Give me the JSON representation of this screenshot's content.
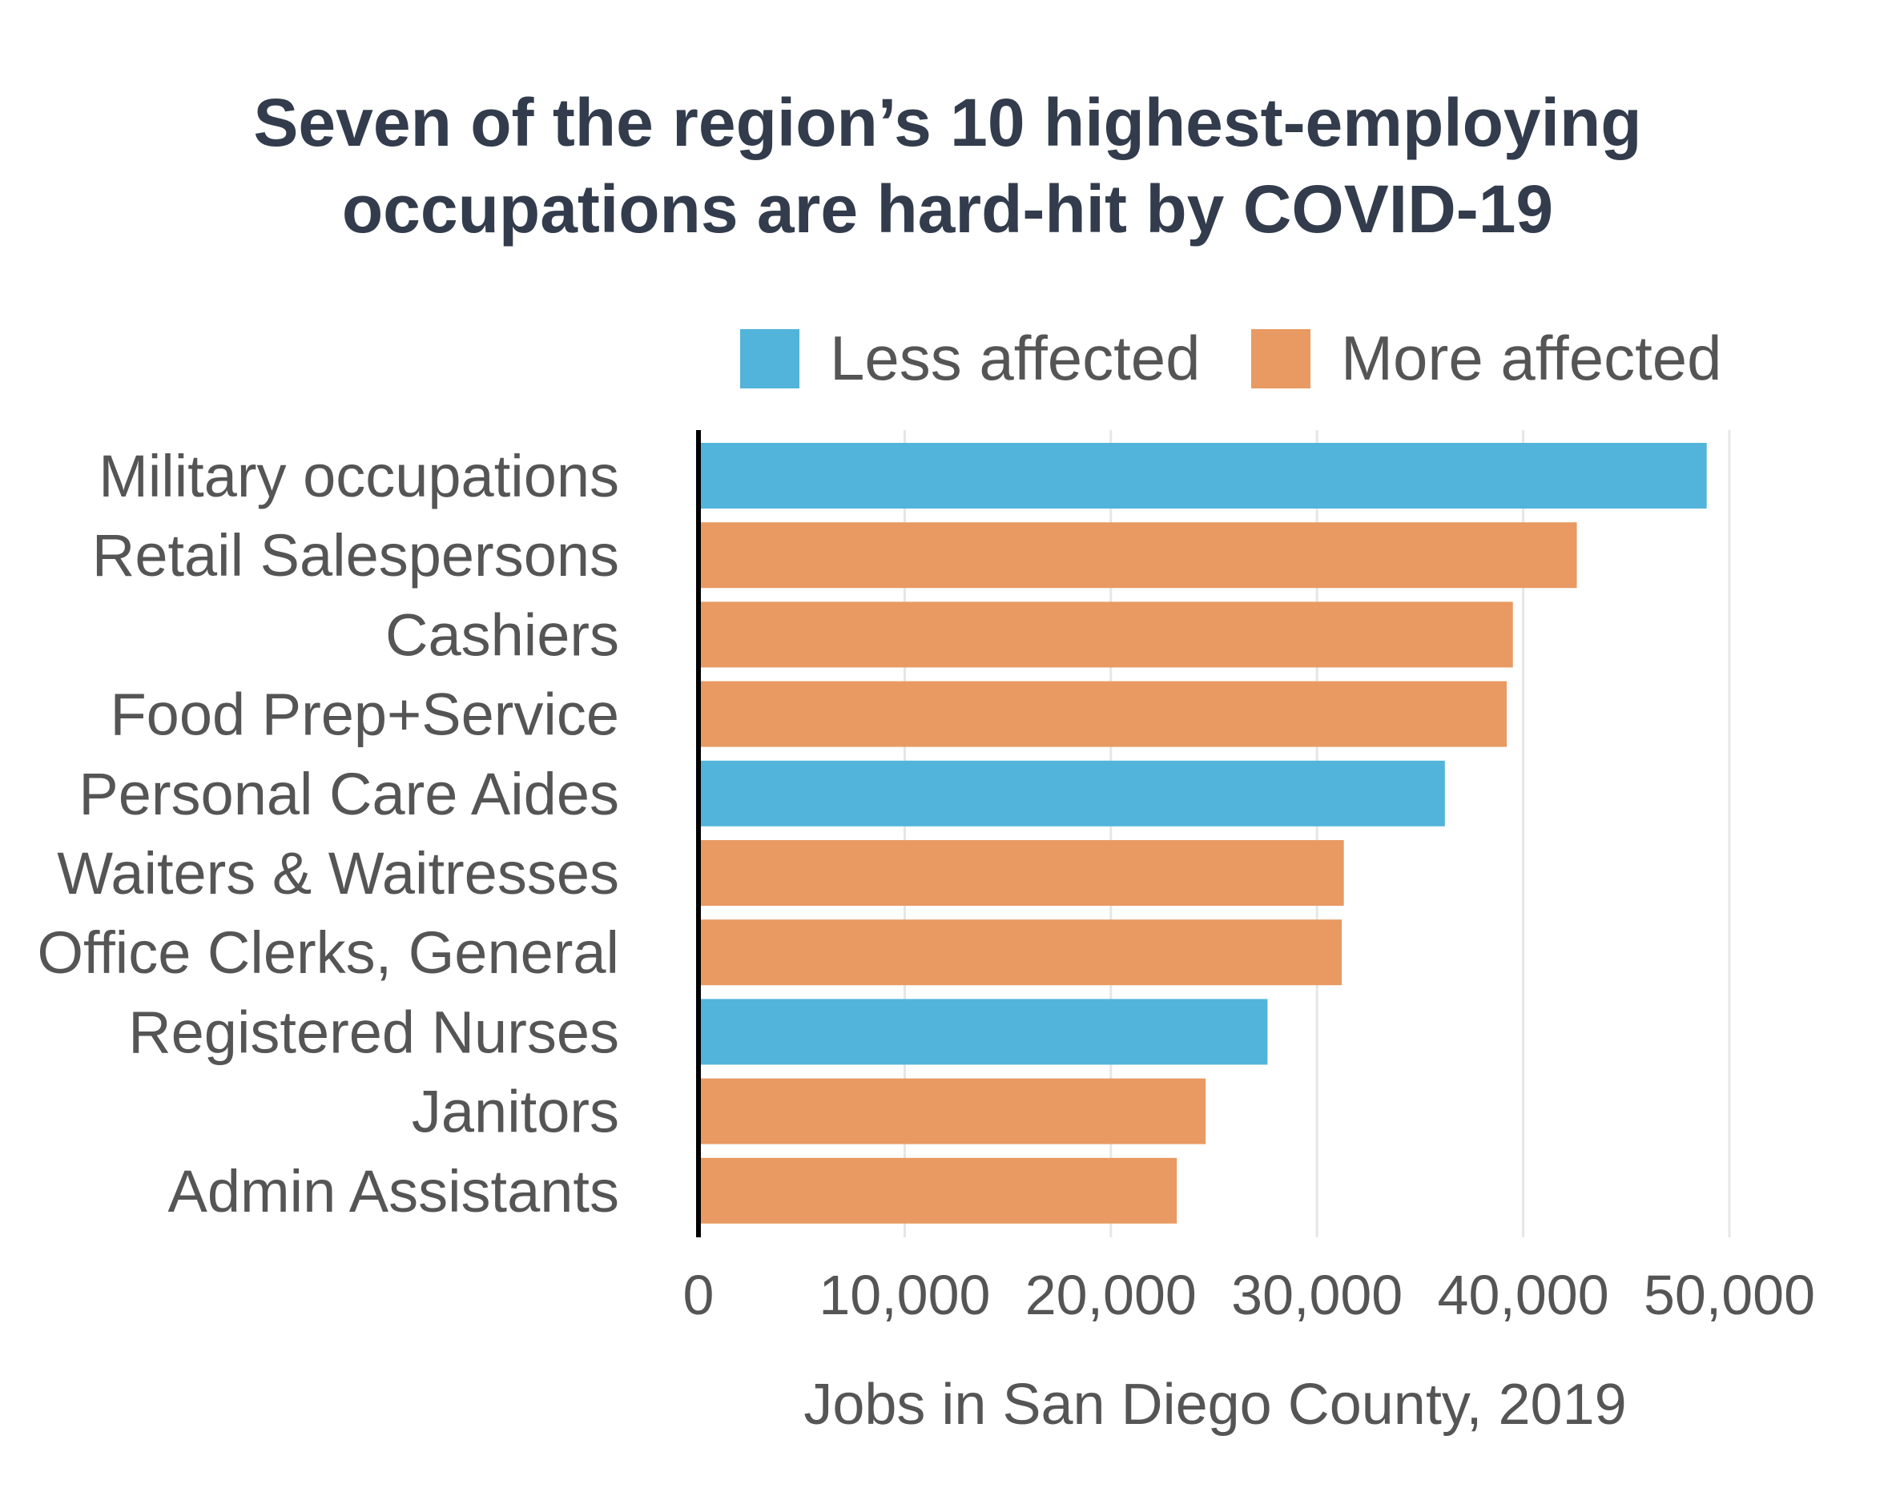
{
  "chart_data": {
    "type": "bar",
    "orientation": "horizontal",
    "title": [
      "Seven of the region’s 10 highest-employing",
      "occupations are hard-hit by COVID-19"
    ],
    "xlabel": "Jobs in San Diego County, 2019",
    "ylabel": "",
    "xlim": [
      0,
      50000
    ],
    "ticks": [
      0,
      10000,
      20000,
      30000,
      40000,
      50000
    ],
    "tick_labels": [
      "0",
      "10,000",
      "20,000",
      "30,000",
      "40,000",
      "50,000"
    ],
    "grid": true,
    "legend_position": "top-right",
    "legend": [
      {
        "key": "less",
        "label": "Less affected",
        "color": "#52b4da"
      },
      {
        "key": "more",
        "label": "More affected",
        "color": "#e89a62"
      }
    ],
    "categories": [
      "Military occupations",
      "Retail Salespersons",
      "Cashiers",
      "Food Prep+Service",
      "Personal Care Aides",
      "Waiters & Waitresses",
      "Office Clerks, General",
      "Registered Nurses",
      "Janitors",
      "Admin Assistants"
    ],
    "values": [
      48900,
      42600,
      39500,
      39200,
      36200,
      31300,
      31200,
      27600,
      24600,
      23200
    ],
    "groups": [
      "less",
      "more",
      "more",
      "more",
      "less",
      "more",
      "more",
      "less",
      "more",
      "more"
    ]
  }
}
